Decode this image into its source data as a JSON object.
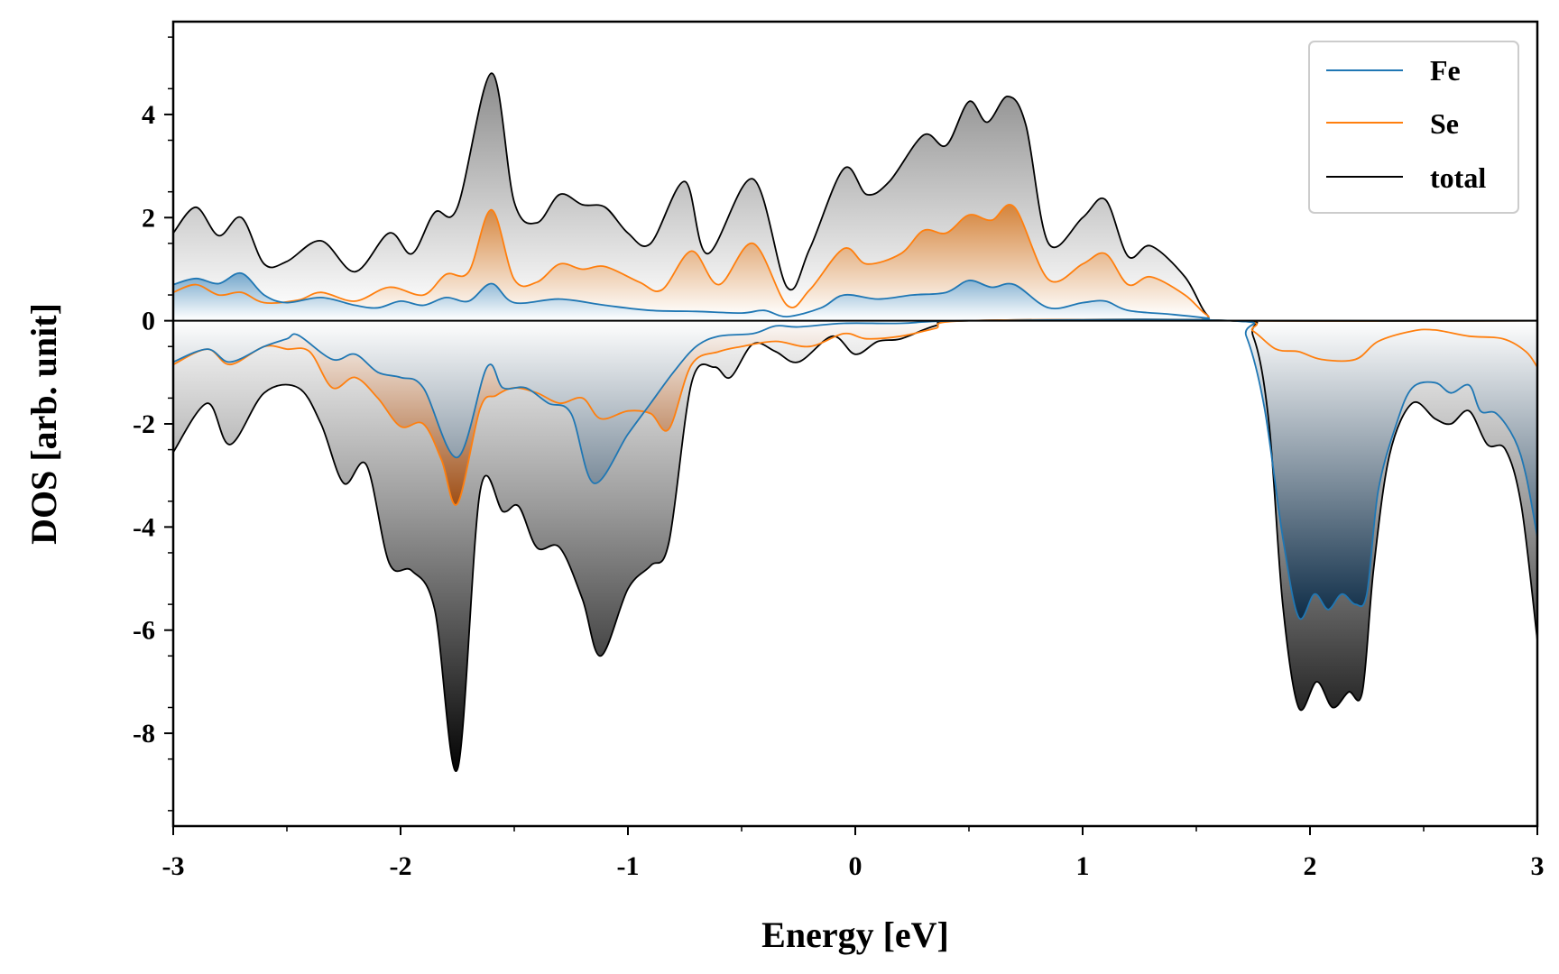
{
  "chart_data": {
    "type": "area",
    "title": "",
    "xlabel": "Energy [eV]",
    "ylabel": "DOS [arb. unit]",
    "xlim": [
      -3,
      3
    ],
    "ylim": [
      -9.8,
      5.8
    ],
    "xticks": [
      -3,
      -2,
      -1,
      0,
      1,
      2,
      3
    ],
    "xtick_labels": [
      "-3",
      "-2",
      "-1",
      "0",
      "1",
      "2",
      "3"
    ],
    "yticks": [
      -8,
      -6,
      -4,
      -2,
      0,
      2,
      4
    ],
    "ytick_labels": [
      "-8",
      "-6",
      "-4",
      "-2",
      "0",
      "2",
      "4"
    ],
    "legend_position": "top-right",
    "series": [
      {
        "name": "Fe",
        "color": "#1f77b4",
        "up": [
          [
            -3,
            0.7
          ],
          [
            -2.9,
            0.82
          ],
          [
            -2.8,
            0.72
          ],
          [
            -2.7,
            0.92
          ],
          [
            -2.6,
            0.5
          ],
          [
            -2.5,
            0.35
          ],
          [
            -2.35,
            0.45
          ],
          [
            -2.2,
            0.3
          ],
          [
            -2.1,
            0.25
          ],
          [
            -2.0,
            0.38
          ],
          [
            -1.9,
            0.3
          ],
          [
            -1.8,
            0.45
          ],
          [
            -1.7,
            0.38
          ],
          [
            -1.6,
            0.72
          ],
          [
            -1.5,
            0.35
          ],
          [
            -1.3,
            0.42
          ],
          [
            -1.1,
            0.3
          ],
          [
            -0.9,
            0.2
          ],
          [
            -0.7,
            0.18
          ],
          [
            -0.5,
            0.15
          ],
          [
            -0.4,
            0.2
          ],
          [
            -0.3,
            0.08
          ],
          [
            -0.15,
            0.25
          ],
          [
            -0.05,
            0.5
          ],
          [
            0.1,
            0.42
          ],
          [
            0.25,
            0.5
          ],
          [
            0.4,
            0.55
          ],
          [
            0.5,
            0.78
          ],
          [
            0.6,
            0.65
          ],
          [
            0.7,
            0.7
          ],
          [
            0.85,
            0.25
          ],
          [
            1.0,
            0.35
          ],
          [
            1.1,
            0.38
          ],
          [
            1.2,
            0.2
          ],
          [
            1.4,
            0.12
          ],
          [
            1.55,
            0.05
          ],
          [
            1.65,
            0
          ],
          [
            3,
            0
          ]
        ],
        "down": [
          [
            -3,
            -0.8
          ],
          [
            -2.85,
            -0.55
          ],
          [
            -2.75,
            -0.8
          ],
          [
            -2.6,
            -0.5
          ],
          [
            -2.5,
            -0.35
          ],
          [
            -2.45,
            -0.28
          ],
          [
            -2.3,
            -0.75
          ],
          [
            -2.2,
            -0.65
          ],
          [
            -2.1,
            -1.0
          ],
          [
            -2.0,
            -1.1
          ],
          [
            -1.9,
            -1.3
          ],
          [
            -1.75,
            -2.65
          ],
          [
            -1.62,
            -0.9
          ],
          [
            -1.55,
            -1.3
          ],
          [
            -1.45,
            -1.3
          ],
          [
            -1.35,
            -1.6
          ],
          [
            -1.25,
            -1.8
          ],
          [
            -1.15,
            -3.15
          ],
          [
            -1.0,
            -2.2
          ],
          [
            -0.9,
            -1.6
          ],
          [
            -0.8,
            -1.0
          ],
          [
            -0.7,
            -0.5
          ],
          [
            -0.6,
            -0.3
          ],
          [
            -0.45,
            -0.25
          ],
          [
            -0.35,
            -0.1
          ],
          [
            -0.25,
            -0.12
          ],
          [
            -0.05,
            -0.05
          ],
          [
            0.2,
            -0.05
          ],
          [
            0.5,
            0
          ],
          [
            1.65,
            0
          ],
          [
            1.72,
            -0.3
          ],
          [
            1.8,
            -1.7
          ],
          [
            1.88,
            -4.2
          ],
          [
            1.95,
            -5.75
          ],
          [
            2.02,
            -5.3
          ],
          [
            2.08,
            -5.6
          ],
          [
            2.14,
            -5.3
          ],
          [
            2.2,
            -5.5
          ],
          [
            2.25,
            -5.3
          ],
          [
            2.3,
            -3.3
          ],
          [
            2.38,
            -2.0
          ],
          [
            2.45,
            -1.3
          ],
          [
            2.55,
            -1.2
          ],
          [
            2.62,
            -1.4
          ],
          [
            2.7,
            -1.25
          ],
          [
            2.75,
            -1.75
          ],
          [
            2.82,
            -1.8
          ],
          [
            2.9,
            -2.3
          ],
          [
            2.95,
            -3.0
          ],
          [
            3,
            -4.2
          ]
        ]
      },
      {
        "name": "Se",
        "color": "#ff7f0e",
        "up": [
          [
            -3,
            0.55
          ],
          [
            -2.9,
            0.7
          ],
          [
            -2.8,
            0.5
          ],
          [
            -2.7,
            0.55
          ],
          [
            -2.6,
            0.35
          ],
          [
            -2.45,
            0.4
          ],
          [
            -2.35,
            0.55
          ],
          [
            -2.2,
            0.38
          ],
          [
            -2.05,
            0.65
          ],
          [
            -1.9,
            0.5
          ],
          [
            -1.8,
            0.9
          ],
          [
            -1.7,
            0.95
          ],
          [
            -1.6,
            2.15
          ],
          [
            -1.5,
            0.8
          ],
          [
            -1.4,
            0.75
          ],
          [
            -1.3,
            1.1
          ],
          [
            -1.2,
            1.0
          ],
          [
            -1.1,
            1.05
          ],
          [
            -0.95,
            0.75
          ],
          [
            -0.85,
            0.6
          ],
          [
            -0.72,
            1.35
          ],
          [
            -0.6,
            0.7
          ],
          [
            -0.45,
            1.5
          ],
          [
            -0.3,
            0.3
          ],
          [
            -0.2,
            0.6
          ],
          [
            -0.05,
            1.4
          ],
          [
            0.05,
            1.1
          ],
          [
            0.2,
            1.3
          ],
          [
            0.3,
            1.75
          ],
          [
            0.4,
            1.7
          ],
          [
            0.5,
            2.05
          ],
          [
            0.6,
            1.95
          ],
          [
            0.7,
            2.2
          ],
          [
            0.85,
            0.8
          ],
          [
            1.0,
            1.1
          ],
          [
            1.1,
            1.3
          ],
          [
            1.2,
            0.7
          ],
          [
            1.3,
            0.85
          ],
          [
            1.45,
            0.5
          ],
          [
            1.55,
            0.1
          ],
          [
            1.65,
            0
          ],
          [
            3,
            0
          ]
        ],
        "down": [
          [
            -3,
            -0.85
          ],
          [
            -2.85,
            -0.55
          ],
          [
            -2.75,
            -0.85
          ],
          [
            -2.6,
            -0.5
          ],
          [
            -2.5,
            -0.55
          ],
          [
            -2.4,
            -0.6
          ],
          [
            -2.3,
            -1.3
          ],
          [
            -2.2,
            -1.1
          ],
          [
            -2.1,
            -1.5
          ],
          [
            -2.0,
            -2.05
          ],
          [
            -1.9,
            -2.0
          ],
          [
            -1.82,
            -2.7
          ],
          [
            -1.75,
            -3.55
          ],
          [
            -1.65,
            -1.7
          ],
          [
            -1.58,
            -1.45
          ],
          [
            -1.5,
            -1.3
          ],
          [
            -1.4,
            -1.4
          ],
          [
            -1.3,
            -1.6
          ],
          [
            -1.2,
            -1.5
          ],
          [
            -1.12,
            -1.9
          ],
          [
            -1.0,
            -1.75
          ],
          [
            -0.9,
            -1.8
          ],
          [
            -0.82,
            -2.1
          ],
          [
            -0.72,
            -0.85
          ],
          [
            -0.6,
            -0.6
          ],
          [
            -0.5,
            -0.5
          ],
          [
            -0.35,
            -0.4
          ],
          [
            -0.2,
            -0.5
          ],
          [
            -0.05,
            -0.25
          ],
          [
            0.05,
            -0.35
          ],
          [
            0.2,
            -0.3
          ],
          [
            0.35,
            -0.15
          ],
          [
            0.5,
            0
          ],
          [
            1.65,
            0
          ],
          [
            1.75,
            -0.2
          ],
          [
            1.85,
            -0.55
          ],
          [
            1.95,
            -0.6
          ],
          [
            2.05,
            -0.75
          ],
          [
            2.2,
            -0.75
          ],
          [
            2.3,
            -0.4
          ],
          [
            2.45,
            -0.2
          ],
          [
            2.55,
            -0.18
          ],
          [
            2.7,
            -0.3
          ],
          [
            2.85,
            -0.35
          ],
          [
            2.95,
            -0.6
          ],
          [
            3,
            -0.9
          ]
        ]
      },
      {
        "name": "total",
        "color": "#000000",
        "up": [
          [
            -3,
            1.7
          ],
          [
            -2.9,
            2.2
          ],
          [
            -2.8,
            1.65
          ],
          [
            -2.7,
            2.0
          ],
          [
            -2.6,
            1.1
          ],
          [
            -2.5,
            1.15
          ],
          [
            -2.35,
            1.55
          ],
          [
            -2.2,
            0.95
          ],
          [
            -2.05,
            1.7
          ],
          [
            -1.95,
            1.3
          ],
          [
            -1.85,
            2.1
          ],
          [
            -1.75,
            2.2
          ],
          [
            -1.6,
            4.8
          ],
          [
            -1.5,
            2.3
          ],
          [
            -1.4,
            1.9
          ],
          [
            -1.3,
            2.45
          ],
          [
            -1.2,
            2.25
          ],
          [
            -1.1,
            2.2
          ],
          [
            -1.0,
            1.7
          ],
          [
            -0.9,
            1.5
          ],
          [
            -0.75,
            2.7
          ],
          [
            -0.65,
            1.3
          ],
          [
            -0.45,
            2.75
          ],
          [
            -0.3,
            0.65
          ],
          [
            -0.2,
            1.4
          ],
          [
            -0.05,
            2.95
          ],
          [
            0.05,
            2.45
          ],
          [
            0.15,
            2.7
          ],
          [
            0.3,
            3.6
          ],
          [
            0.4,
            3.4
          ],
          [
            0.5,
            4.25
          ],
          [
            0.58,
            3.85
          ],
          [
            0.67,
            4.35
          ],
          [
            0.75,
            3.8
          ],
          [
            0.85,
            1.5
          ],
          [
            1.0,
            2.0
          ],
          [
            1.1,
            2.35
          ],
          [
            1.2,
            1.25
          ],
          [
            1.3,
            1.45
          ],
          [
            1.45,
            0.85
          ],
          [
            1.55,
            0.1
          ],
          [
            1.65,
            0
          ],
          [
            3,
            0
          ]
        ],
        "down": [
          [
            -3,
            -2.55
          ],
          [
            -2.85,
            -1.6
          ],
          [
            -2.75,
            -2.4
          ],
          [
            -2.6,
            -1.4
          ],
          [
            -2.45,
            -1.3
          ],
          [
            -2.35,
            -2.0
          ],
          [
            -2.25,
            -3.15
          ],
          [
            -2.15,
            -2.8
          ],
          [
            -2.05,
            -4.7
          ],
          [
            -1.95,
            -4.85
          ],
          [
            -1.85,
            -5.6
          ],
          [
            -1.75,
            -8.7
          ],
          [
            -1.65,
            -3.3
          ],
          [
            -1.55,
            -3.7
          ],
          [
            -1.48,
            -3.6
          ],
          [
            -1.4,
            -4.4
          ],
          [
            -1.3,
            -4.4
          ],
          [
            -1.2,
            -5.4
          ],
          [
            -1.12,
            -6.5
          ],
          [
            -1.0,
            -5.2
          ],
          [
            -0.9,
            -4.75
          ],
          [
            -0.82,
            -4.3
          ],
          [
            -0.72,
            -1.2
          ],
          [
            -0.62,
            -0.9
          ],
          [
            -0.55,
            -1.1
          ],
          [
            -0.45,
            -0.45
          ],
          [
            -0.35,
            -0.6
          ],
          [
            -0.25,
            -0.8
          ],
          [
            -0.1,
            -0.3
          ],
          [
            0.0,
            -0.65
          ],
          [
            0.1,
            -0.4
          ],
          [
            0.2,
            -0.35
          ],
          [
            0.35,
            -0.1
          ],
          [
            0.5,
            0
          ],
          [
            1.65,
            0
          ],
          [
            1.75,
            -0.3
          ],
          [
            1.82,
            -2.0
          ],
          [
            1.88,
            -5.5
          ],
          [
            1.95,
            -7.5
          ],
          [
            2.03,
            -7.0
          ],
          [
            2.1,
            -7.5
          ],
          [
            2.17,
            -7.2
          ],
          [
            2.23,
            -7.2
          ],
          [
            2.28,
            -4.8
          ],
          [
            2.35,
            -2.6
          ],
          [
            2.45,
            -1.6
          ],
          [
            2.55,
            -1.9
          ],
          [
            2.62,
            -2.0
          ],
          [
            2.7,
            -1.75
          ],
          [
            2.78,
            -2.4
          ],
          [
            2.86,
            -2.5
          ],
          [
            2.93,
            -3.6
          ],
          [
            3,
            -6.2
          ]
        ]
      }
    ]
  }
}
